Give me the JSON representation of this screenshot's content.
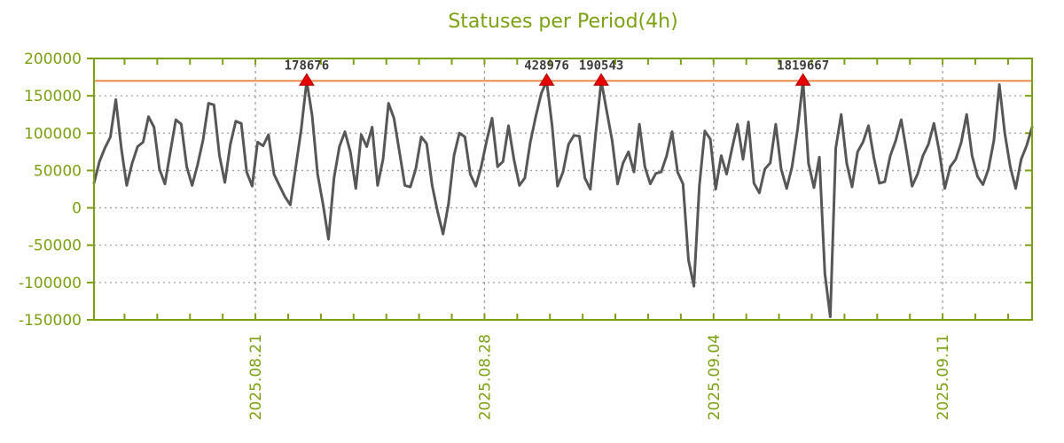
{
  "chart_data": {
    "type": "line",
    "title": "Statuses per Period(4h)",
    "period": "4h",
    "grid": "on",
    "legend": "off",
    "ylim": [
      -150000,
      200000
    ],
    "y_ticks": [
      200000,
      150000,
      100000,
      50000,
      0,
      -50000,
      -100000,
      -150000
    ],
    "y_tick_labels": [
      "200000",
      "150000",
      "100000",
      "50000",
      "0",
      "-50000",
      "-100000",
      "-150000"
    ],
    "x_ticks": [
      {
        "label": "2025.08.21",
        "position_index": 29.6
      },
      {
        "label": "2025.08.28",
        "position_index": 71.6
      },
      {
        "label": "2025.09.04",
        "position_index": 113.6
      },
      {
        "label": "2025.09.11",
        "position_index": 155.6
      }
    ],
    "x_minor_tick_every": 6,
    "x_minor_tick_offset": 5.6,
    "clip_threshold": 170000,
    "peak_annotations": [
      {
        "index": 39,
        "label": "178676"
      },
      {
        "index": 83,
        "label": "428976"
      },
      {
        "index": 93,
        "label": "190543"
      },
      {
        "index": 130,
        "label": "1819667"
      }
    ],
    "series": [
      {
        "name": "statuses",
        "values": [
          33000,
          62000,
          80000,
          95000,
          145000,
          80000,
          30000,
          60000,
          82000,
          88000,
          122000,
          108000,
          52000,
          32000,
          75000,
          118000,
          112000,
          55000,
          30000,
          58000,
          91000,
          140000,
          138000,
          70000,
          34000,
          85000,
          116000,
          113000,
          48000,
          29000,
          88000,
          83000,
          98000,
          45000,
          30000,
          15000,
          4000,
          55000,
          105000,
          170000,
          124000,
          45000,
          5000,
          -42000,
          40000,
          82000,
          102000,
          75000,
          26000,
          98000,
          82000,
          108000,
          30000,
          65000,
          140000,
          120000,
          75000,
          30000,
          28000,
          52000,
          95000,
          86000,
          30000,
          -5000,
          -35000,
          5000,
          70000,
          100000,
          95000,
          45000,
          29000,
          55000,
          90000,
          120000,
          55000,
          62000,
          110000,
          65000,
          30000,
          40000,
          88000,
          122000,
          153000,
          170000,
          110000,
          29000,
          48000,
          85000,
          97000,
          96000,
          40000,
          25000,
          100000,
          170000,
          130000,
          90000,
          32000,
          60000,
          75000,
          48000,
          112000,
          55000,
          32000,
          46000,
          48000,
          70000,
          102000,
          48000,
          32000,
          -70000,
          -105000,
          30000,
          103000,
          92000,
          25000,
          70000,
          45000,
          80000,
          112000,
          65000,
          115000,
          33000,
          20000,
          52000,
          60000,
          112000,
          52000,
          26000,
          55000,
          105000,
          170000,
          60000,
          27000,
          68000,
          -88000,
          -146000,
          80000,
          125000,
          60000,
          28000,
          75000,
          88000,
          110000,
          67000,
          33000,
          35000,
          70000,
          90000,
          118000,
          75000,
          29000,
          45000,
          70000,
          85000,
          113000,
          75000,
          26000,
          55000,
          65000,
          87000,
          125000,
          70000,
          42000,
          31000,
          52000,
          90000,
          165000,
          100000,
          55000,
          26000,
          65000,
          83000,
          108000
        ]
      }
    ],
    "colors": {
      "axis": "#7ca014",
      "grid": "#a0a0a0",
      "series": "#575757",
      "threshold": "#ec8c50",
      "marker": "#e60000",
      "marker_label": "#3d3d3d",
      "background": "#ffffff"
    }
  }
}
